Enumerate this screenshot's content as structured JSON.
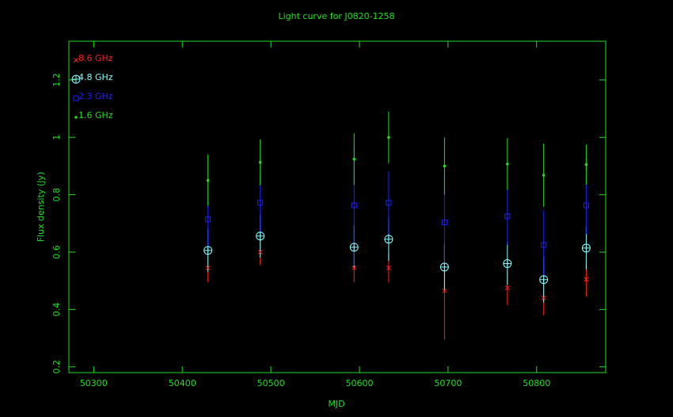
{
  "chart_data": {
    "type": "scatter",
    "title": "Light curve for J0820-1258",
    "x_label": "MJD",
    "y_label": "Flux density (Jy)",
    "x": [
      50429,
      50488,
      50594,
      50633,
      50696,
      50767,
      50808,
      50856
    ],
    "series": [
      {
        "name": "8.6 GHz",
        "color": "#ff2020",
        "marker": "x",
        "values": [
          0.545,
          0.6,
          0.545,
          0.545,
          0.465,
          0.475,
          0.44,
          0.505
        ],
        "errors": [
          0.05,
          0.045,
          0.05,
          0.05,
          0.17,
          0.06,
          0.06,
          0.06
        ]
      },
      {
        "name": "4.8 GHz",
        "color": "#80ffff",
        "marker": "circle-plus",
        "values": [
          0.606,
          0.656,
          0.617,
          0.645,
          0.548,
          0.56,
          0.504,
          0.614
        ],
        "errors": [
          0.075,
          0.075,
          0.075,
          0.075,
          0.08,
          0.075,
          0.08,
          0.075
        ]
      },
      {
        "name": "2.3 GHz",
        "color": "#2020ff",
        "marker": "square",
        "values": [
          0.714,
          0.772,
          0.763,
          0.772,
          0.703,
          0.725,
          0.625,
          0.763
        ],
        "errors": [
          0.1,
          0.1,
          0.21,
          0.11,
          0.17,
          0.1,
          0.12,
          0.1
        ]
      },
      {
        "name": "1.6 GHz",
        "color": "#20e020",
        "marker": "dot",
        "values": [
          0.85,
          0.913,
          0.924,
          1.0,
          0.9,
          0.907,
          0.868,
          0.905
        ],
        "errors": [
          0.09,
          0.08,
          0.09,
          0.09,
          0.1,
          0.09,
          0.11,
          0.07
        ]
      }
    ],
    "xlim": [
      50272,
      50878
    ],
    "ylim": [
      0.18,
      1.335
    ],
    "xticks": [
      50300,
      50400,
      50500,
      50600,
      50700,
      50800
    ],
    "yticks": [
      0.2,
      0.4,
      0.6,
      0.8,
      1,
      1.2
    ],
    "legend": "upper left",
    "axis_color": "#20e020"
  }
}
